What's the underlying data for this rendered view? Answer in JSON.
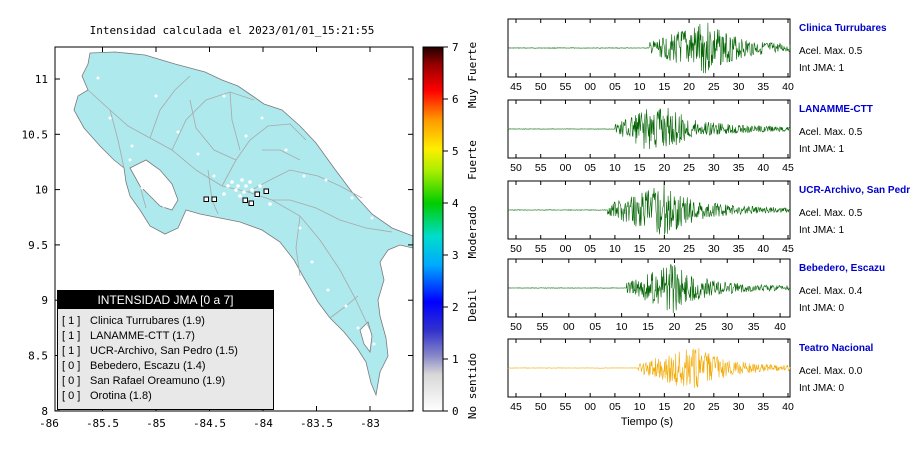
{
  "map": {
    "title": "Intensidad calculada el 2023/01/01_15:21:55",
    "x_ticks": [
      "-86",
      "-85.5",
      "-85",
      "-84.5",
      "-84",
      "-83.5",
      "-83"
    ],
    "y_ticks": [
      "11",
      "10.5",
      "10",
      "9.5",
      "9",
      "8.5",
      "8"
    ],
    "colors": {
      "land": "#aee9ee",
      "sea": "#ffffff",
      "roads": "#a8a8a8",
      "border": "#7a7a7a"
    }
  },
  "colorbar": {
    "ticks": [
      "0",
      "1",
      "2",
      "3",
      "4",
      "5",
      "6",
      "7"
    ],
    "categories": [
      "No sentido",
      "Debil",
      "Moderado",
      "Fuerte",
      "Muy Fuerte"
    ]
  },
  "legend": {
    "title": "INTENSIDAD JMA [0 a 7]",
    "items": [
      {
        "level": "[ 1 ]",
        "station": "Clinica Turrubares (1.9)"
      },
      {
        "level": "[ 1 ]",
        "station": "LANAMME-CTT (1.7)"
      },
      {
        "level": "[ 1 ]",
        "station": "UCR-Archivo, San Pedro (1.5)"
      },
      {
        "level": "[ 0 ]",
        "station": "Bebedero, Escazu (1.4)"
      },
      {
        "level": "[ 0 ]",
        "station": "San Rafael Oreamuno (1.9)"
      },
      {
        "level": "[ 0 ]",
        "station": "Orotina (1.8)"
      }
    ]
  },
  "waveforms": {
    "xlabel": "Tiempo (s)",
    "panels": [
      {
        "name": "Clinica Turrubares",
        "accel": "Acel. Max. 0.5",
        "jma": "Int JMA: 1",
        "color": "#006400",
        "ticks": [
          "45",
          "50",
          "55",
          "00",
          "05",
          "10",
          "15",
          "20",
          "25",
          "30",
          "35",
          "40"
        ],
        "onset": 0.5,
        "peak": 0.7,
        "amp": 1.0
      },
      {
        "name": "LANAMME-CTT",
        "accel": "Acel. Max. 0.5",
        "jma": "Int JMA: 1",
        "color": "#006400",
        "ticks": [
          "50",
          "55",
          "00",
          "05",
          "10",
          "15",
          "20",
          "25",
          "30",
          "35",
          "40",
          "45"
        ],
        "onset": 0.38,
        "peak": 0.53,
        "amp": 1.0
      },
      {
        "name": "UCR-Archivo, San Pedro",
        "accel": "Acel. Max. 0.5",
        "jma": "Int JMA: 1",
        "color": "#006400",
        "ticks": [
          "50",
          "55",
          "00",
          "05",
          "10",
          "15",
          "20",
          "25",
          "30",
          "35",
          "40",
          "45"
        ],
        "onset": 0.35,
        "peak": 0.55,
        "amp": 1.0
      },
      {
        "name": "Bebedero, Escazu",
        "accel": "Acel. Max. 0.4",
        "jma": "Int JMA: 0",
        "color": "#006400",
        "ticks": [
          "50",
          "55",
          "00",
          "05",
          "10",
          "15",
          "20",
          "25",
          "30",
          "35",
          "40"
        ],
        "onset": 0.42,
        "peak": 0.58,
        "amp": 0.9
      },
      {
        "name": "Teatro Nacional",
        "accel": "Acel. Max. 0.0",
        "jma": "Int JMA: 0",
        "color": "#f2a900",
        "ticks": [
          "45",
          "50",
          "55",
          "00",
          "05",
          "10",
          "15",
          "20",
          "25",
          "30",
          "35",
          "40"
        ],
        "onset": 0.46,
        "peak": 0.65,
        "amp": 0.85
      }
    ]
  }
}
